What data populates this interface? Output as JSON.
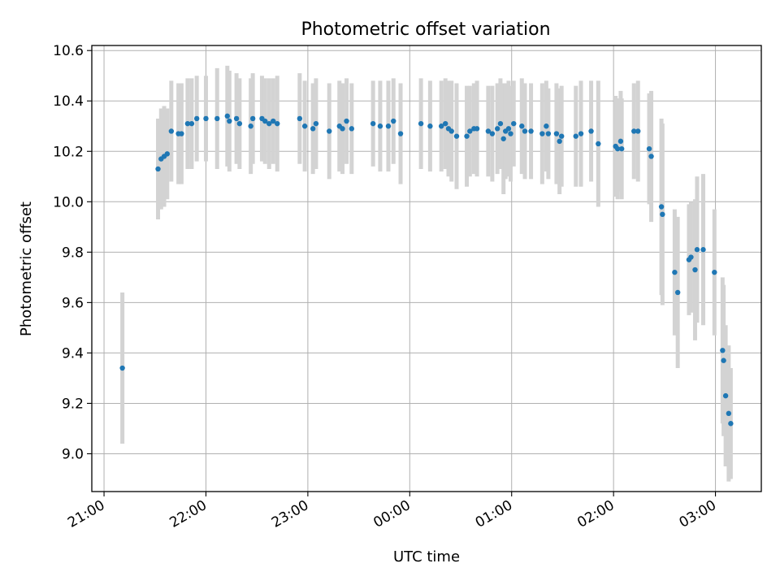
{
  "chart_data": {
    "type": "scatter",
    "title": "Photometric offset variation",
    "xlabel": "UTC time",
    "ylabel": "Photometric offset",
    "x_tick_labels": [
      "21:00",
      "22:00",
      "23:00",
      "00:00",
      "01:00",
      "02:00",
      "03:00"
    ],
    "y_tick_labels": [
      "9.0",
      "9.2",
      "9.4",
      "9.6",
      "9.8",
      "10.0",
      "10.2",
      "10.4",
      "10.6"
    ],
    "x_ticks_hours_utc": [
      21,
      22,
      23,
      24,
      25,
      26,
      27
    ],
    "y_ticks": [
      9.0,
      9.2,
      9.4,
      9.6,
      9.8,
      10.0,
      10.2,
      10.4,
      10.6
    ],
    "xlim_hours_utc": [
      20.88,
      27.45
    ],
    "ylim": [
      8.85,
      10.62
    ],
    "grid": true,
    "point_color": "#1f77b4",
    "errorbar_color": "#d3d3d3",
    "series": [
      {
        "x_hours_utc": [
          21.18,
          21.53,
          21.56,
          21.59,
          21.62,
          21.66,
          21.73,
          21.76,
          21.82,
          21.86,
          21.91,
          22.0,
          22.11,
          22.21,
          22.23,
          22.3,
          22.33,
          22.44,
          22.46,
          22.55,
          22.58,
          22.62,
          22.66,
          22.7,
          22.92,
          22.97,
          23.05,
          23.08,
          23.21,
          23.31,
          23.34,
          23.38,
          23.43,
          23.64,
          23.71,
          23.79,
          23.84,
          23.91,
          24.11,
          24.2,
          24.31,
          24.35,
          24.38,
          24.41,
          24.46,
          24.56,
          24.59,
          24.63,
          24.66,
          24.77,
          24.81,
          24.86,
          24.89,
          24.92,
          24.94,
          24.97,
          24.99,
          25.02,
          25.1,
          25.13,
          25.19,
          25.3,
          25.34,
          25.36,
          25.44,
          25.47,
          25.49,
          25.63,
          25.68,
          25.78,
          25.85,
          26.02,
          26.04,
          26.07,
          26.08,
          26.2,
          26.24,
          26.35,
          26.37,
          26.47,
          26.48,
          26.6,
          26.63,
          26.74,
          26.76,
          26.8,
          26.82,
          26.88,
          26.99,
          27.07,
          27.08,
          27.1,
          27.13,
          27.15
        ],
        "y": [
          9.34,
          10.13,
          10.17,
          10.18,
          10.19,
          10.28,
          10.27,
          10.27,
          10.31,
          10.31,
          10.33,
          10.33,
          10.33,
          10.34,
          10.32,
          10.33,
          10.31,
          10.3,
          10.33,
          10.33,
          10.32,
          10.31,
          10.32,
          10.31,
          10.33,
          10.3,
          10.29,
          10.31,
          10.28,
          10.3,
          10.29,
          10.32,
          10.29,
          10.31,
          10.3,
          10.3,
          10.32,
          10.27,
          10.31,
          10.3,
          10.3,
          10.31,
          10.29,
          10.28,
          10.26,
          10.26,
          10.28,
          10.29,
          10.29,
          10.28,
          10.27,
          10.29,
          10.31,
          10.25,
          10.28,
          10.29,
          10.27,
          10.31,
          10.3,
          10.28,
          10.28,
          10.27,
          10.3,
          10.27,
          10.27,
          10.24,
          10.26,
          10.26,
          10.27,
          10.28,
          10.23,
          10.22,
          10.21,
          10.24,
          10.21,
          10.28,
          10.28,
          10.21,
          10.18,
          9.98,
          9.95,
          9.72,
          9.64,
          9.77,
          9.78,
          9.73,
          9.81,
          9.81,
          9.72,
          9.41,
          9.37,
          9.23,
          9.16,
          9.12
        ],
        "yerr": [
          0.3,
          0.2,
          0.2,
          0.2,
          0.18,
          0.2,
          0.2,
          0.2,
          0.18,
          0.18,
          0.17,
          0.17,
          0.2,
          0.2,
          0.2,
          0.18,
          0.18,
          0.19,
          0.18,
          0.17,
          0.17,
          0.18,
          0.17,
          0.19,
          0.18,
          0.18,
          0.18,
          0.18,
          0.19,
          0.18,
          0.18,
          0.17,
          0.18,
          0.17,
          0.18,
          0.18,
          0.17,
          0.2,
          0.18,
          0.18,
          0.18,
          0.18,
          0.19,
          0.2,
          0.21,
          0.2,
          0.18,
          0.18,
          0.19,
          0.18,
          0.19,
          0.18,
          0.18,
          0.22,
          0.19,
          0.19,
          0.19,
          0.17,
          0.19,
          0.19,
          0.19,
          0.2,
          0.18,
          0.18,
          0.2,
          0.21,
          0.2,
          0.2,
          0.21,
          0.2,
          0.25,
          0.2,
          0.2,
          0.2,
          0.2,
          0.19,
          0.2,
          0.22,
          0.26,
          0.35,
          0.36,
          0.25,
          0.3,
          0.22,
          0.22,
          0.28,
          0.29,
          0.3,
          0.25,
          0.29,
          0.3,
          0.28,
          0.27,
          0.22
        ]
      }
    ]
  }
}
